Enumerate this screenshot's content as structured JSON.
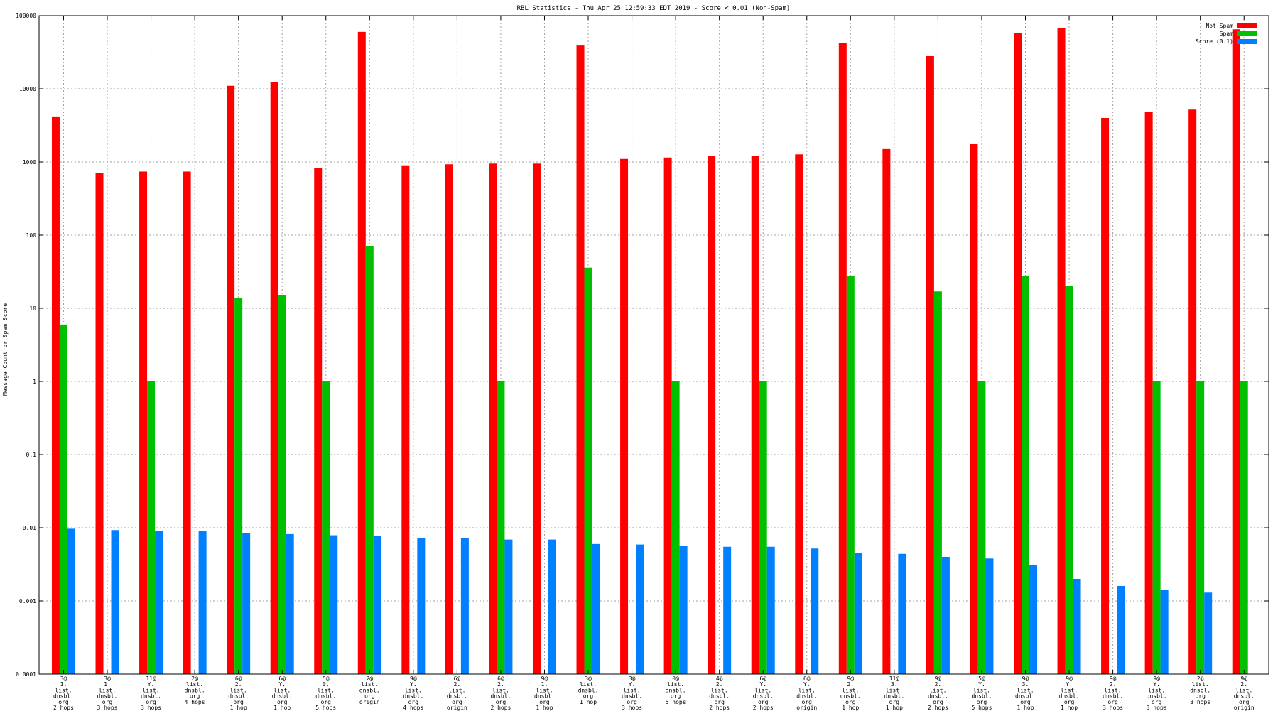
{
  "chart_data": {
    "type": "bar",
    "title": "RBL Statistics - Thu Apr 25 12:59:33 EDT 2019 - Score < 0.01 (Non-Spam)",
    "ylabel": "Message Count or Spam Score",
    "xlabel": "",
    "yscale": "log",
    "ylim": [
      0.0001,
      100000
    ],
    "yticks": [
      "0.0001",
      "0.001",
      "0.01",
      "0.1",
      "1",
      "10",
      "100",
      "1000",
      "10000",
      "100000"
    ],
    "grid": true,
    "legend_position": "top-right",
    "categories": [
      "3@\n1.\nlist.\ndnsbl.\norg\n2 hops",
      "3@\n1.\nlist.\ndnsbl.\norg\n3 hops",
      "11@\nY.\nlist.\ndnsbl.\norg\n3 hops",
      "2@\nlist.\ndnsbl.\norg\n4 hops",
      "6@\n2.\nlist.\ndnsbl.\norg\n1 hop",
      "6@\nY.\nlist.\ndnsbl.\norg\n1 hop",
      "5@\n0.\nlist.\ndnsbl.\norg\n5 hops",
      "2@\nlist.\ndnsbl.\norg\norigin",
      "9@\nY.\nlist.\ndnsbl.\norg\n4 hops",
      "6@\n2.\nlist.\ndnsbl.\norg\norigin",
      "6@\n2.\nlist.\ndnsbl.\norg\n2 hops",
      "9@\n1.\nlist.\ndnsbl.\norg\n1 hop",
      "3@\nlist.\ndnsbl.\norg\n1 hop",
      "3@\nY.\nlist.\ndnsbl.\norg\n3 hops",
      "0@\nlist.\ndnsbl.\norg\n5 hops",
      "4@\n2.\nlist.\ndnsbl.\norg\n2 hops",
      "6@\nY.\nlist.\ndnsbl.\norg\n2 hops",
      "6@\nY.\nlist.\ndnsbl.\norg\norigin",
      "9@\n2.\nlist.\ndnsbl.\norg\n1 hop",
      "11@\n3.\nlist.\ndnsbl.\norg\n1 hop",
      "9@\n2.\nlist.\ndnsbl.\norg\n2 hops",
      "5@\nY.\nlist.\ndnsbl.\norg\n5 hops",
      "9@\n3.\nlist.\ndnsbl.\norg\n1 hop",
      "9@\nY.\nlist.\ndnsbl.\norg\n1 hop",
      "9@\n2.\nlist.\ndnsbl.\norg\n3 hops",
      "9@\nY.\nlist.\ndnsbl.\norg\n3 hops",
      "2@\nlist.\ndnsbl.\norg\n3 hops",
      "9@\n2.\nlist.\ndnsbl.\norg\norigin"
    ],
    "series": [
      {
        "name": "Not Spam",
        "color": "#ff0000",
        "values": [
          4100,
          700,
          740,
          740,
          11000,
          12400,
          830,
          60000,
          900,
          930,
          950,
          950,
          39000,
          1100,
          1150,
          1200,
          1200,
          1270,
          42000,
          1500,
          28000,
          1750,
          58000,
          68000,
          4000,
          4800,
          5200,
          65000
        ]
      },
      {
        "name": "Spam",
        "color": "#00c000",
        "values": [
          6,
          null,
          1,
          null,
          14,
          15,
          1,
          70,
          null,
          null,
          1,
          null,
          36,
          null,
          1,
          null,
          1,
          null,
          28,
          null,
          17,
          1,
          28,
          20,
          null,
          1,
          1,
          1
        ]
      },
      {
        "name": "Score (0.1)",
        "color": "#0080ff",
        "values": [
          0.0097,
          0.0093,
          0.0091,
          0.0091,
          0.0084,
          0.0082,
          0.0079,
          0.0077,
          0.0073,
          0.0072,
          0.0069,
          0.0069,
          0.006,
          0.0059,
          0.0056,
          0.0055,
          0.0055,
          0.0052,
          0.0045,
          0.0044,
          0.004,
          0.0038,
          0.0031,
          0.002,
          0.0016,
          0.0014,
          0.0013,
          0.0001
        ]
      }
    ]
  }
}
